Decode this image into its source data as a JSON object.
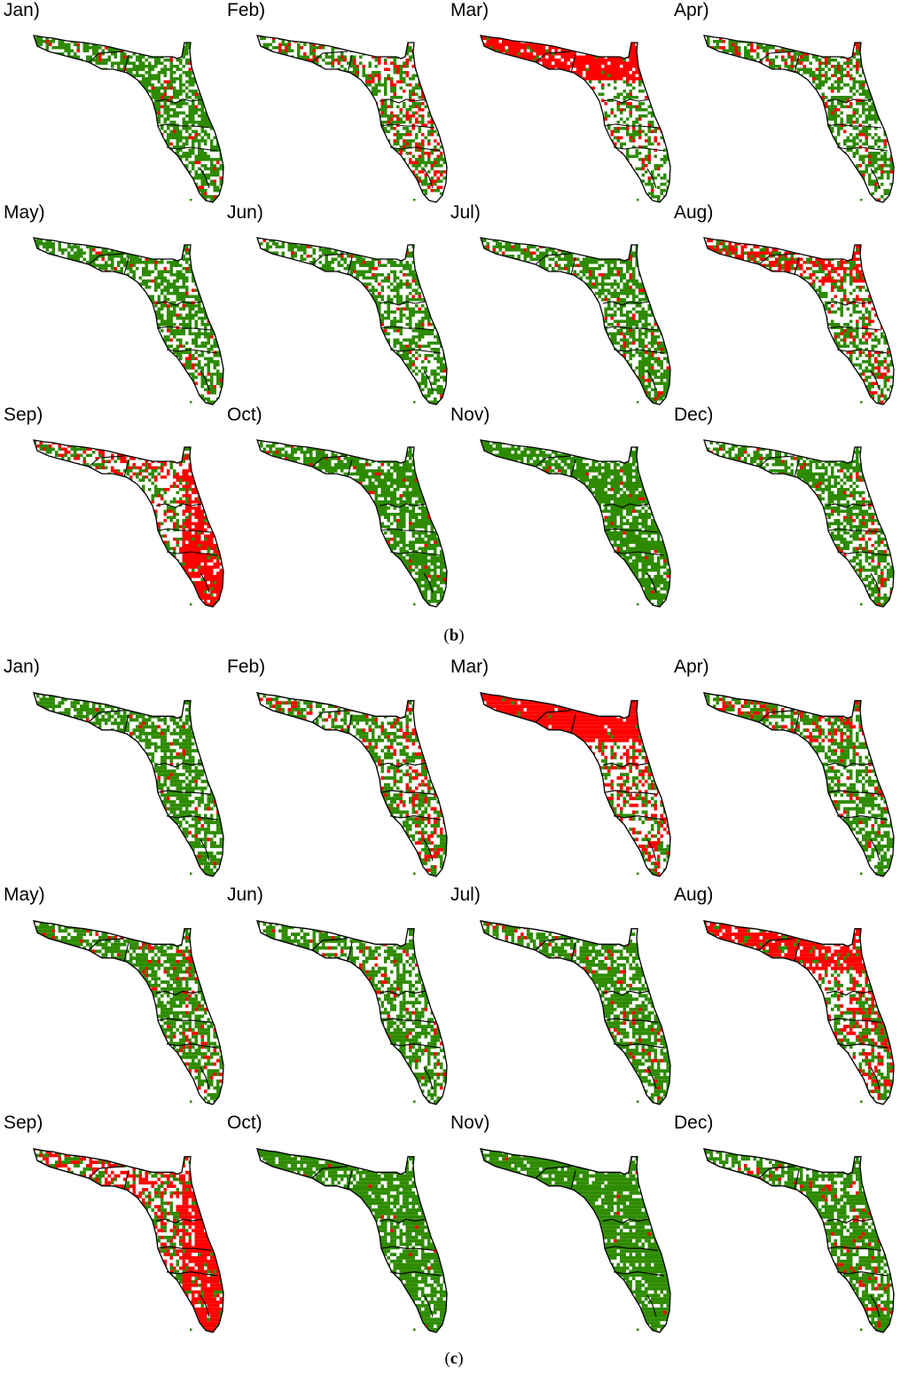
{
  "figure_sets": [
    {
      "id": "b",
      "caption_open": "(",
      "caption_letter": "b",
      "caption_close": ")",
      "panels": [
        {
          "label": "Jan)",
          "pattern": {
            "green": 0.62,
            "red": 0.04,
            "red_north": 0.0,
            "red_east": 0.0
          }
        },
        {
          "label": "Feb)",
          "pattern": {
            "green": 0.45,
            "red": 0.14,
            "red_north": 0.0,
            "red_east": 0.08
          }
        },
        {
          "label": "Mar)",
          "pattern": {
            "green": 0.33,
            "red": 0.12,
            "red_north": 0.72,
            "red_east": 0.0
          }
        },
        {
          "label": "Apr)",
          "pattern": {
            "green": 0.5,
            "red": 0.06,
            "red_north": 0.1,
            "red_east": 0.0
          }
        },
        {
          "label": "May)",
          "pattern": {
            "green": 0.58,
            "red": 0.05,
            "red_north": 0.0,
            "red_east": 0.0
          }
        },
        {
          "label": "Jun)",
          "pattern": {
            "green": 0.55,
            "red": 0.03,
            "red_north": 0.0,
            "red_east": 0.0
          }
        },
        {
          "label": "Jul)",
          "pattern": {
            "green": 0.6,
            "red": 0.06,
            "red_north": 0.0,
            "red_east": 0.0
          }
        },
        {
          "label": "Aug)",
          "pattern": {
            "green": 0.45,
            "red": 0.1,
            "red_north": 0.35,
            "red_east": 0.08
          }
        },
        {
          "label": "Sep)",
          "pattern": {
            "green": 0.38,
            "red": 0.18,
            "red_north": 0.05,
            "red_east": 0.55
          }
        },
        {
          "label": "Oct)",
          "pattern": {
            "green": 0.75,
            "red": 0.03,
            "red_north": 0.0,
            "red_east": 0.0
          }
        },
        {
          "label": "Nov)",
          "pattern": {
            "green": 0.8,
            "red": 0.02,
            "red_north": 0.0,
            "red_east": 0.0
          }
        },
        {
          "label": "Dec)",
          "pattern": {
            "green": 0.62,
            "red": 0.04,
            "red_north": 0.0,
            "red_east": 0.05
          }
        }
      ]
    },
    {
      "id": "c",
      "caption_open": "(",
      "caption_letter": "c",
      "caption_close": ")",
      "panels": [
        {
          "label": "Jan)",
          "pattern": {
            "green": 0.68,
            "red": 0.03,
            "red_north": 0.0,
            "red_east": 0.0
          }
        },
        {
          "label": "Feb)",
          "pattern": {
            "green": 0.55,
            "red": 0.12,
            "red_north": 0.02,
            "red_east": 0.1
          }
        },
        {
          "label": "Mar)",
          "pattern": {
            "green": 0.35,
            "red": 0.2,
            "red_north": 0.8,
            "red_east": 0.05
          }
        },
        {
          "label": "Apr)",
          "pattern": {
            "green": 0.55,
            "red": 0.06,
            "red_north": 0.15,
            "red_east": 0.0
          }
        },
        {
          "label": "May)",
          "pattern": {
            "green": 0.65,
            "red": 0.06,
            "red_north": 0.0,
            "red_east": 0.04
          }
        },
        {
          "label": "Jun)",
          "pattern": {
            "green": 0.62,
            "red": 0.06,
            "red_north": 0.0,
            "red_east": 0.0
          }
        },
        {
          "label": "Jul)",
          "pattern": {
            "green": 0.68,
            "red": 0.06,
            "red_north": 0.0,
            "red_east": 0.0
          }
        },
        {
          "label": "Aug)",
          "pattern": {
            "green": 0.45,
            "red": 0.18,
            "red_north": 0.6,
            "red_east": 0.1
          }
        },
        {
          "label": "Sep)",
          "pattern": {
            "green": 0.4,
            "red": 0.25,
            "red_north": 0.1,
            "red_east": 0.55
          }
        },
        {
          "label": "Oct)",
          "pattern": {
            "green": 0.8,
            "red": 0.02,
            "red_north": 0.0,
            "red_east": 0.0
          }
        },
        {
          "label": "Nov)",
          "pattern": {
            "green": 0.84,
            "red": 0.01,
            "red_north": 0.0,
            "red_east": 0.0
          }
        },
        {
          "label": "Dec)",
          "pattern": {
            "green": 0.68,
            "red": 0.04,
            "red_north": 0.0,
            "red_east": 0.05
          }
        }
      ]
    }
  ],
  "colors": {
    "green": "#2e8b00",
    "red": "#ff0000",
    "outline": "#000000",
    "background": "#ffffff"
  }
}
